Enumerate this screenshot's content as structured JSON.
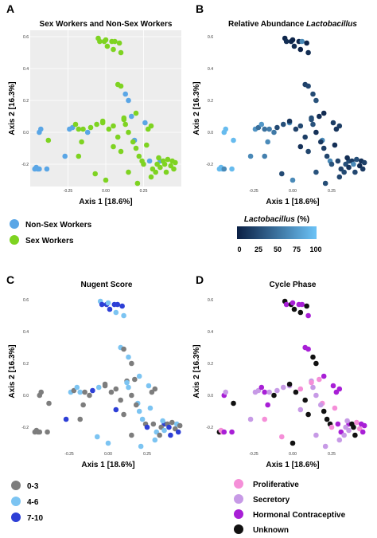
{
  "chart_data": [
    {
      "panel": "A",
      "type": "scatter",
      "title": "Sex Workers and Non-Sex Workers",
      "xlabel": "Axis 1 [18.6%]",
      "ylabel": "Axis 2 [16.3%]",
      "xlim": [
        -0.5,
        0.5
      ],
      "ylim": [
        -0.34,
        0.64
      ],
      "xticks": [
        "-0.25",
        "0.00",
        "0.25"
      ],
      "yticks": [
        "0.6",
        "0.4",
        "0.2",
        "0.0",
        "-0.2"
      ],
      "grid": true,
      "legend": [
        {
          "name": "Non-Sex Workers",
          "color": "#5aa6e6"
        },
        {
          "name": "Sex Workers",
          "color": "#7ed321"
        }
      ],
      "points": [
        [
          -0.47,
          -0.23,
          0
        ],
        [
          -0.46,
          -0.22,
          0
        ],
        [
          -0.45,
          -0.23,
          0
        ],
        [
          -0.44,
          -0.23,
          0
        ],
        [
          -0.39,
          -0.23,
          0
        ],
        [
          -0.44,
          0.0,
          0
        ],
        [
          -0.43,
          0.02,
          0
        ],
        [
          -0.27,
          -0.15,
          0
        ],
        [
          -0.24,
          0.02,
          0
        ],
        [
          -0.22,
          0.03,
          0
        ],
        [
          -0.12,
          0.0,
          0
        ],
        [
          0.13,
          0.24,
          0
        ],
        [
          0.15,
          0.2,
          0
        ],
        [
          0.17,
          0.1,
          0
        ],
        [
          0.19,
          -0.05,
          0
        ],
        [
          0.26,
          0.06,
          0
        ],
        [
          0.29,
          -0.18,
          0
        ],
        [
          0.36,
          -0.18,
          0
        ],
        [
          -0.05,
          0.59,
          1
        ],
        [
          -0.04,
          0.57,
          1
        ],
        [
          -0.01,
          0.57,
          1
        ],
        [
          0.0,
          0.58,
          1
        ],
        [
          0.01,
          0.54,
          1
        ],
        [
          0.04,
          0.57,
          1
        ],
        [
          0.05,
          0.52,
          1
        ],
        [
          0.06,
          0.57,
          1
        ],
        [
          0.09,
          0.56,
          1
        ],
        [
          0.1,
          0.5,
          1
        ],
        [
          0.08,
          0.3,
          1
        ],
        [
          0.1,
          0.29,
          1
        ],
        [
          0.12,
          0.09,
          1
        ],
        [
          0.13,
          0.05,
          1
        ],
        [
          0.15,
          0.0,
          1
        ],
        [
          0.18,
          -0.06,
          1
        ],
        [
          0.2,
          -0.1,
          1
        ],
        [
          0.22,
          -0.15,
          1
        ],
        [
          0.24,
          -0.18,
          1
        ],
        [
          0.25,
          -0.2,
          1
        ],
        [
          0.27,
          -0.08,
          1
        ],
        [
          0.28,
          0.02,
          1
        ],
        [
          0.3,
          0.04,
          1
        ],
        [
          0.31,
          -0.23,
          1
        ],
        [
          0.33,
          -0.25,
          1
        ],
        [
          0.34,
          -0.2,
          1
        ],
        [
          0.35,
          -0.16,
          1
        ],
        [
          0.36,
          -0.22,
          1
        ],
        [
          0.38,
          -0.18,
          1
        ],
        [
          0.39,
          -0.2,
          1
        ],
        [
          0.4,
          -0.25,
          1
        ],
        [
          0.41,
          -0.17,
          1
        ],
        [
          0.43,
          -0.21,
          1
        ],
        [
          0.44,
          -0.18,
          1
        ],
        [
          0.45,
          -0.23,
          1
        ],
        [
          0.46,
          -0.19,
          1
        ],
        [
          0.3,
          -0.28,
          1
        ],
        [
          0.21,
          -0.32,
          1
        ],
        [
          0.15,
          -0.25,
          1
        ],
        [
          0.05,
          -0.09,
          1
        ],
        [
          0.0,
          -0.3,
          1
        ],
        [
          0.08,
          -0.03,
          1
        ],
        [
          0.1,
          -0.12,
          1
        ],
        [
          -0.07,
          -0.26,
          1
        ],
        [
          -0.18,
          -0.15,
          1
        ],
        [
          -0.16,
          -0.06,
          1
        ],
        [
          -0.2,
          0.05,
          1
        ],
        [
          -0.18,
          0.02,
          1
        ],
        [
          -0.15,
          0.02,
          1
        ],
        [
          -0.1,
          0.03,
          1
        ],
        [
          -0.06,
          0.05,
          1
        ],
        [
          -0.02,
          0.06,
          1
        ],
        [
          -0.02,
          0.07,
          1
        ],
        [
          -0.38,
          -0.05,
          1
        ],
        [
          0.02,
          0.02,
          1
        ],
        [
          0.05,
          0.04,
          1
        ],
        [
          0.12,
          0.08,
          1
        ],
        [
          0.2,
          0.12,
          1
        ]
      ]
    },
    {
      "panel": "B",
      "type": "scatter",
      "title": "Relative Abundance ",
      "title_italic": "Lactobacillus",
      "xlabel": "Axis 1 [18.6%]",
      "ylabel": "Axis 2 [16.3%]",
      "xticks": [
        "-0.25",
        "0.00",
        "0.25"
      ],
      "yticks": [
        "0.6",
        "0.4",
        "0.2",
        "0.0",
        "-0.2"
      ],
      "grid": false,
      "colorbar": {
        "label_italic": "Lactobacillus",
        "label_suffix": " (%)",
        "ticks": [
          "0",
          "25",
          "50",
          "75",
          "100"
        ],
        "low_color": "#0a1f44",
        "high_color": "#6cc3f7"
      }
    },
    {
      "panel": "C",
      "type": "scatter",
      "title": "Nugent Score",
      "xlabel": "Axis 1 [18.6%]",
      "ylabel": "Axis 2 [16.3%]",
      "xticks": [
        "-0.25",
        "0.00",
        "0.25"
      ],
      "yticks": [
        "0.6",
        "0.4",
        "0.2",
        "0.0",
        "-0.2"
      ],
      "grid": false,
      "legend": [
        {
          "name": "0-3",
          "color": "#7d7d7d"
        },
        {
          "name": "4-6",
          "color": "#7cc4f2"
        },
        {
          "name": "7-10",
          "color": "#2d3fd6"
        }
      ]
    },
    {
      "panel": "D",
      "type": "scatter",
      "title": "Cycle Phase",
      "xlabel": "Axis 1 [18.6%]",
      "ylabel": "Axis 2 [16.3%]",
      "xticks": [
        "-0.25",
        "0.00",
        "0.25"
      ],
      "yticks": [
        "0.6",
        "0.4",
        "0.2",
        "0.0",
        "-0.2"
      ],
      "grid": false,
      "legend": [
        {
          "name": "Proliferative",
          "color": "#f58fd8"
        },
        {
          "name": "Secretory",
          "color": "#c79ae6"
        },
        {
          "name": "Hormonal Contraceptive",
          "color": "#a81fd6"
        },
        {
          "name": "Unknown",
          "color": "#111111"
        }
      ]
    }
  ]
}
